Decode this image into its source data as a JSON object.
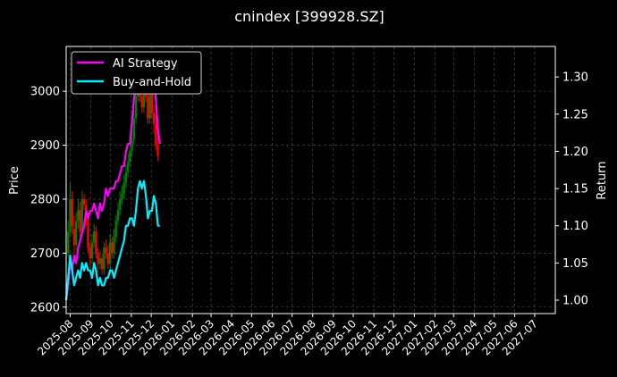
{
  "chart_data": {
    "type": "candlestick+line",
    "title": "cnindex [399928.SZ]",
    "ylabel_left": "Price",
    "ylabel_right": "Return",
    "y_left_range": [
      2588,
      3083
    ],
    "y_left_ticks": [
      2600,
      2700,
      2800,
      2900,
      3000
    ],
    "y_right_range": [
      0.982,
      1.341
    ],
    "y_right_ticks": [
      "1.00",
      "1.05",
      "1.10",
      "1.15",
      "1.20",
      "1.25",
      "1.30"
    ],
    "x_range": [
      "2025-07-26",
      "2027-08-01"
    ],
    "x_ticks": [
      "2025-08",
      "2025-09",
      "2025-10",
      "2025-11",
      "2025-12",
      "2026-01",
      "2026-02",
      "2026-03",
      "2026-04",
      "2026-05",
      "2026-06",
      "2026-07",
      "2026-08",
      "2026-09",
      "2026-10",
      "2026-11",
      "2026-12",
      "2027-01",
      "2027-02",
      "2027-03",
      "2027-04",
      "2027-05",
      "2027-06",
      "2027-07"
    ],
    "grid": true,
    "legend_position": "top-left",
    "colors": {
      "up": "#008000",
      "down": "#ff0000",
      "ai_strategy": "#ff00ff",
      "buy_and_hold": "#00f0ff",
      "grid": "#555555"
    },
    "series": [
      {
        "name": "AI Strategy",
        "axis": "right",
        "x": [
          "2025-07-26",
          "2025-07-29",
          "2025-08-01",
          "2025-08-04",
          "2025-08-07",
          "2025-08-10",
          "2025-08-13",
          "2025-08-16",
          "2025-08-19",
          "2025-08-22",
          "2025-08-25",
          "2025-08-28",
          "2025-08-31",
          "2025-09-03",
          "2025-09-06",
          "2025-09-09",
          "2025-09-12",
          "2025-09-15",
          "2025-09-18",
          "2025-09-21",
          "2025-09-24",
          "2025-09-27",
          "2025-09-30",
          "2025-10-03",
          "2025-10-06",
          "2025-10-09",
          "2025-10-12",
          "2025-10-15",
          "2025-10-18",
          "2025-10-21",
          "2025-10-24",
          "2025-10-27",
          "2025-10-30",
          "2025-11-02",
          "2025-11-05",
          "2025-11-08",
          "2025-11-11",
          "2025-11-14",
          "2025-11-17",
          "2025-11-20",
          "2025-11-23",
          "2025-11-26",
          "2025-11-29",
          "2025-12-02",
          "2025-12-05",
          "2025-12-08",
          "2025-12-11",
          "2025-12-14"
        ],
        "values": [
          1.0,
          1.02,
          1.05,
          1.04,
          1.06,
          1.05,
          1.07,
          1.08,
          1.09,
          1.1,
          1.12,
          1.11,
          1.12,
          1.12,
          1.13,
          1.12,
          1.11,
          1.13,
          1.12,
          1.13,
          1.15,
          1.14,
          1.15,
          1.15,
          1.15,
          1.16,
          1.16,
          1.17,
          1.18,
          1.18,
          1.2,
          1.21,
          1.21,
          1.24,
          1.27,
          1.29,
          1.3,
          1.29,
          1.29,
          1.3,
          1.31,
          1.3,
          1.32,
          1.28,
          1.3,
          1.27,
          1.23,
          1.21
        ]
      },
      {
        "name": "Buy-and-Hold",
        "axis": "right",
        "x": [
          "2025-07-26",
          "2025-07-29",
          "2025-08-01",
          "2025-08-04",
          "2025-08-07",
          "2025-08-10",
          "2025-08-13",
          "2025-08-16",
          "2025-08-19",
          "2025-08-22",
          "2025-08-25",
          "2025-08-28",
          "2025-08-31",
          "2025-09-03",
          "2025-09-06",
          "2025-09-09",
          "2025-09-12",
          "2025-09-15",
          "2025-09-18",
          "2025-09-21",
          "2025-09-24",
          "2025-09-27",
          "2025-09-30",
          "2025-10-03",
          "2025-10-06",
          "2025-10-09",
          "2025-10-12",
          "2025-10-15",
          "2025-10-18",
          "2025-10-21",
          "2025-10-24",
          "2025-10-27",
          "2025-10-30",
          "2025-11-02",
          "2025-11-05",
          "2025-11-08",
          "2025-11-11",
          "2025-11-14",
          "2025-11-17",
          "2025-11-20",
          "2025-11-23",
          "2025-11-26",
          "2025-11-29",
          "2025-12-02",
          "2025-12-05",
          "2025-12-08",
          "2025-12-11",
          "2025-12-14"
        ],
        "values": [
          1.0,
          1.03,
          1.06,
          1.04,
          1.02,
          1.03,
          1.04,
          1.03,
          1.05,
          1.04,
          1.05,
          1.04,
          1.04,
          1.03,
          1.05,
          1.04,
          1.02,
          1.03,
          1.02,
          1.02,
          1.03,
          1.03,
          1.04,
          1.04,
          1.03,
          1.04,
          1.05,
          1.06,
          1.07,
          1.08,
          1.1,
          1.1,
          1.11,
          1.11,
          1.1,
          1.12,
          1.15,
          1.16,
          1.15,
          1.16,
          1.14,
          1.11,
          1.12,
          1.12,
          1.14,
          1.13,
          1.1,
          1.1
        ]
      }
    ],
    "candles": {
      "axis": "left",
      "x": [
        "2025-07-29",
        "2025-08-01",
        "2025-08-04",
        "2025-08-07",
        "2025-08-10",
        "2025-08-13",
        "2025-08-16",
        "2025-08-19",
        "2025-08-22",
        "2025-08-25",
        "2025-08-28",
        "2025-08-31",
        "2025-09-03",
        "2025-09-06",
        "2025-09-09",
        "2025-09-12",
        "2025-09-15",
        "2025-09-18",
        "2025-09-21",
        "2025-09-24",
        "2025-09-27",
        "2025-09-30",
        "2025-10-03",
        "2025-10-06",
        "2025-10-09",
        "2025-10-12",
        "2025-10-15",
        "2025-10-18",
        "2025-10-21",
        "2025-10-24",
        "2025-10-27",
        "2025-10-30",
        "2025-11-02",
        "2025-11-05",
        "2025-11-08",
        "2025-11-11",
        "2025-11-14",
        "2025-11-17",
        "2025-11-20",
        "2025-11-23",
        "2025-11-26",
        "2025-11-29",
        "2025-12-02",
        "2025-12-05",
        "2025-12-08",
        "2025-12-11"
      ],
      "open": [
        2700,
        2740,
        2800,
        2745,
        2715,
        2760,
        2780,
        2740,
        2800,
        2790,
        2760,
        2710,
        2690,
        2720,
        2740,
        2700,
        2680,
        2690,
        2670,
        2710,
        2700,
        2680,
        2720,
        2700,
        2730,
        2760,
        2780,
        2800,
        2810,
        2830,
        2850,
        2870,
        2890,
        2910,
        2950,
        2990,
        3010,
        2990,
        2970,
        3000,
        2990,
        2950,
        3020,
        2960,
        2940,
        2900
      ],
      "close": [
        2740,
        2800,
        2750,
        2715,
        2760,
        2780,
        2740,
        2800,
        2790,
        2760,
        2710,
        2690,
        2720,
        2740,
        2700,
        2680,
        2690,
        2670,
        2710,
        2700,
        2680,
        2720,
        2700,
        2730,
        2760,
        2780,
        2800,
        2810,
        2830,
        2850,
        2870,
        2890,
        2910,
        2950,
        2990,
        3010,
        2990,
        2970,
        3000,
        2990,
        2950,
        3020,
        2960,
        2940,
        2900,
        2880
      ],
      "high": [
        2760,
        2830,
        2815,
        2770,
        2775,
        2800,
        2795,
        2815,
        2810,
        2800,
        2775,
        2720,
        2735,
        2755,
        2750,
        2710,
        2705,
        2700,
        2720,
        2725,
        2715,
        2735,
        2730,
        2745,
        2770,
        2795,
        2815,
        2825,
        2845,
        2865,
        2885,
        2905,
        2930,
        2965,
        3005,
        3030,
        3020,
        3000,
        3020,
        3020,
        3005,
        3040,
        3030,
        2975,
        2955,
        2920
      ],
      "low": [
        2690,
        2730,
        2735,
        2700,
        2705,
        2745,
        2730,
        2730,
        2780,
        2750,
        2700,
        2675,
        2680,
        2710,
        2690,
        2665,
        2670,
        2660,
        2660,
        2690,
        2670,
        2670,
        2690,
        2690,
        2720,
        2750,
        2770,
        2790,
        2800,
        2820,
        2840,
        2860,
        2880,
        2900,
        2940,
        2980,
        2980,
        2960,
        2960,
        2980,
        2940,
        2940,
        2950,
        2920,
        2890,
        2870
      ]
    }
  }
}
